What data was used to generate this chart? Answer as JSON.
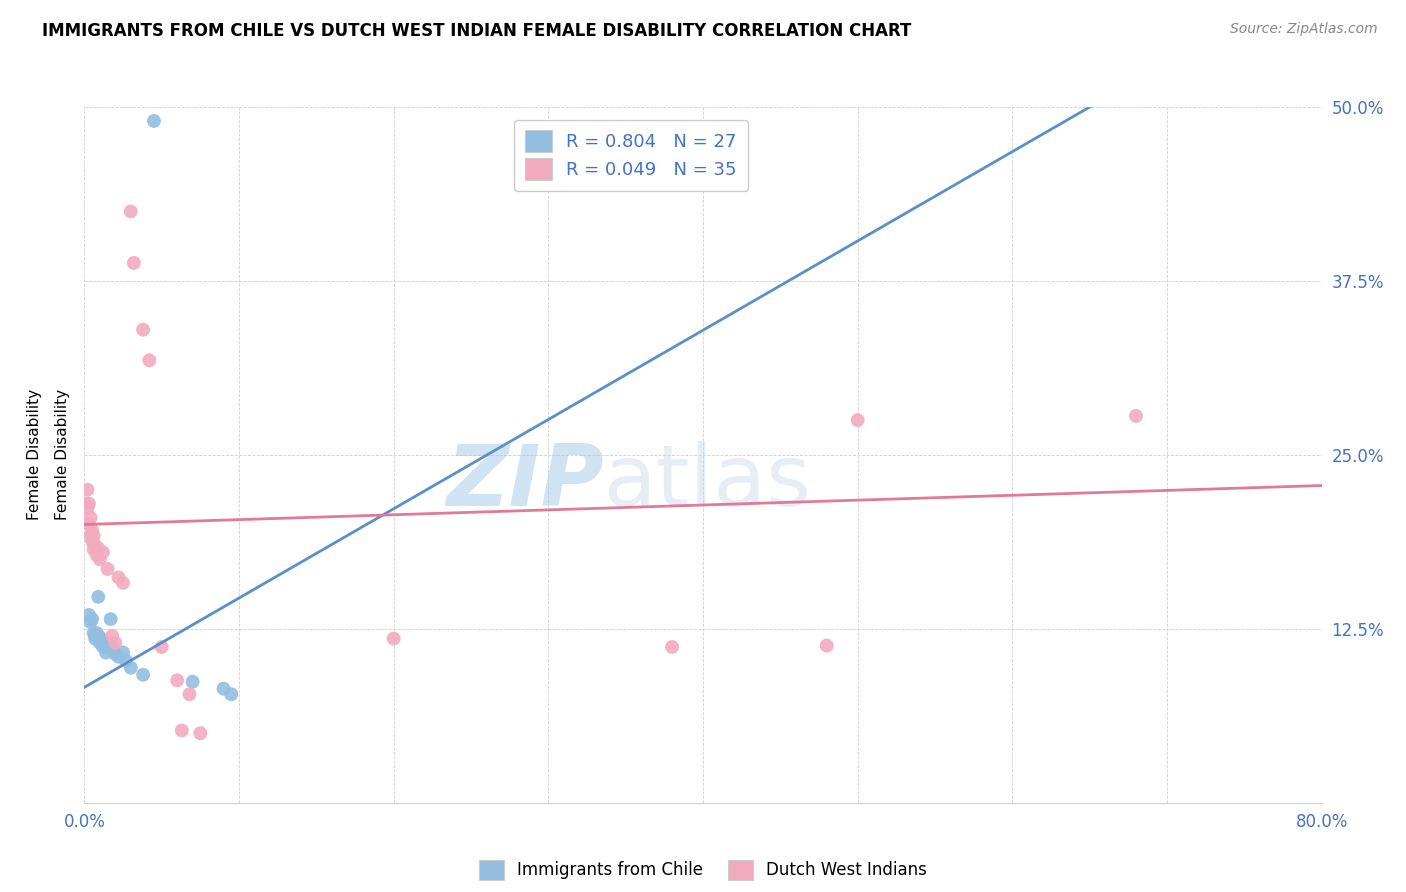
{
  "title": "IMMIGRANTS FROM CHILE VS DUTCH WEST INDIAN FEMALE DISABILITY CORRELATION CHART",
  "source": "Source: ZipAtlas.com",
  "ylabel": "Female Disability",
  "xlim": [
    0.0,
    0.8
  ],
  "ylim": [
    0.0,
    0.5
  ],
  "xticks": [
    0.0,
    0.1,
    0.2,
    0.3,
    0.4,
    0.5,
    0.6,
    0.7,
    0.8
  ],
  "xticklabels": [
    "0.0%",
    "",
    "",
    "",
    "",
    "",
    "",
    "",
    "80.0%"
  ],
  "yticks": [
    0.0,
    0.125,
    0.25,
    0.375,
    0.5
  ],
  "yticklabels": [
    "",
    "12.5%",
    "25.0%",
    "37.5%",
    "50.0%"
  ],
  "chile_color": "#92BEE0",
  "chile_color_line": "#5B8FC9",
  "dwi_color": "#F2ABBE",
  "dwi_color_line": "#E07A96",
  "chile_R": 0.804,
  "chile_N": 27,
  "dwi_R": 0.049,
  "dwi_N": 35,
  "watermark_zip": "ZIP",
  "watermark_atlas": "atlas",
  "legend_label_chile": "Immigrants from Chile",
  "legend_label_dwi": "Dutch West Indians",
  "chile_points": [
    [
      0.003,
      0.135
    ],
    [
      0.004,
      0.13
    ],
    [
      0.005,
      0.132
    ],
    [
      0.006,
      0.122
    ],
    [
      0.007,
      0.12
    ],
    [
      0.007,
      0.118
    ],
    [
      0.008,
      0.122
    ],
    [
      0.009,
      0.148
    ],
    [
      0.01,
      0.119
    ],
    [
      0.01,
      0.115
    ],
    [
      0.011,
      0.117
    ],
    [
      0.012,
      0.112
    ],
    [
      0.013,
      0.115
    ],
    [
      0.014,
      0.108
    ],
    [
      0.015,
      0.112
    ],
    [
      0.017,
      0.132
    ],
    [
      0.018,
      0.112
    ],
    [
      0.02,
      0.107
    ],
    [
      0.022,
      0.105
    ],
    [
      0.025,
      0.108
    ],
    [
      0.027,
      0.102
    ],
    [
      0.03,
      0.097
    ],
    [
      0.038,
      0.092
    ],
    [
      0.045,
      0.49
    ],
    [
      0.07,
      0.087
    ],
    [
      0.09,
      0.082
    ],
    [
      0.095,
      0.078
    ]
  ],
  "dwi_points": [
    [
      0.001,
      0.215
    ],
    [
      0.002,
      0.225
    ],
    [
      0.002,
      0.212
    ],
    [
      0.003,
      0.215
    ],
    [
      0.003,
      0.2
    ],
    [
      0.004,
      0.205
    ],
    [
      0.004,
      0.192
    ],
    [
      0.005,
      0.196
    ],
    [
      0.005,
      0.188
    ],
    [
      0.006,
      0.192
    ],
    [
      0.006,
      0.182
    ],
    [
      0.007,
      0.185
    ],
    [
      0.008,
      0.178
    ],
    [
      0.009,
      0.183
    ],
    [
      0.01,
      0.175
    ],
    [
      0.012,
      0.18
    ],
    [
      0.015,
      0.168
    ],
    [
      0.018,
      0.12
    ],
    [
      0.02,
      0.115
    ],
    [
      0.022,
      0.162
    ],
    [
      0.025,
      0.158
    ],
    [
      0.03,
      0.425
    ],
    [
      0.032,
      0.388
    ],
    [
      0.038,
      0.34
    ],
    [
      0.042,
      0.318
    ],
    [
      0.05,
      0.112
    ],
    [
      0.06,
      0.088
    ],
    [
      0.063,
      0.052
    ],
    [
      0.068,
      0.078
    ],
    [
      0.075,
      0.05
    ],
    [
      0.2,
      0.118
    ],
    [
      0.38,
      0.112
    ],
    [
      0.48,
      0.113
    ],
    [
      0.5,
      0.275
    ],
    [
      0.68,
      0.278
    ]
  ],
  "chile_line_x": [
    0.0,
    0.65
  ],
  "chile_line_y": [
    0.083,
    0.5
  ],
  "dwi_line_x": [
    0.0,
    0.8
  ],
  "dwi_line_y": [
    0.2,
    0.228
  ]
}
